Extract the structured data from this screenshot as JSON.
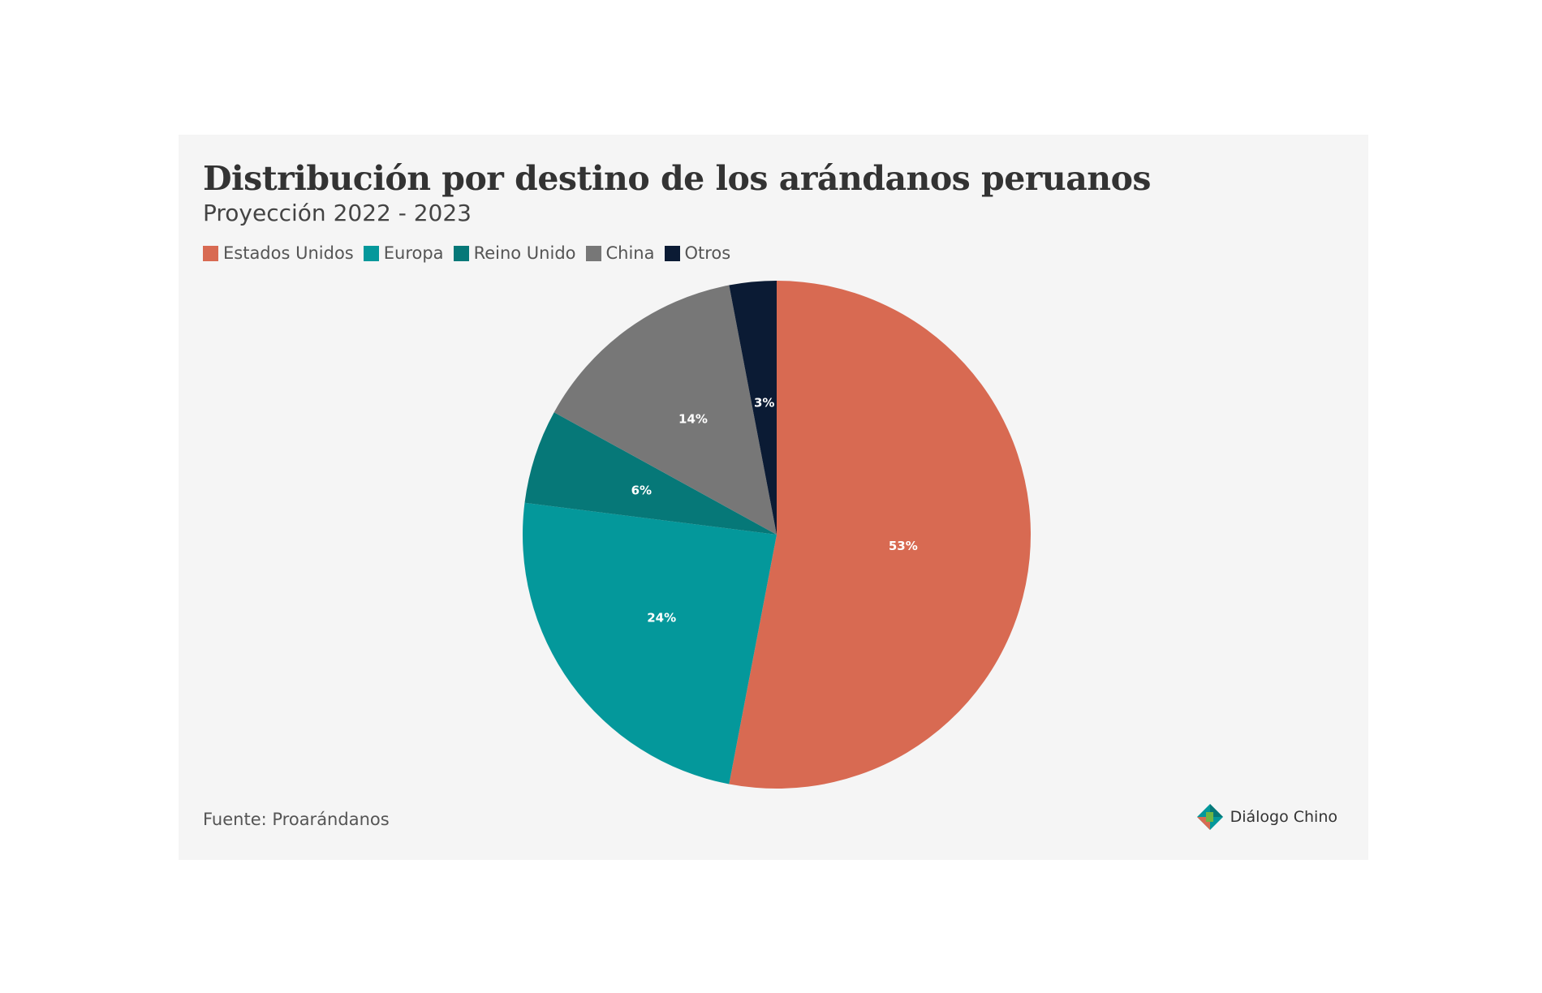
{
  "chart_data": {
    "type": "pie",
    "title": "Distribución por destino de los arándanos peruanos",
    "subtitle": "Proyección 2022 - 2023",
    "legend_position": "top-left",
    "slices": [
      {
        "name": "Estados Unidos",
        "value": 53,
        "label": "53%",
        "color": "#d86a52"
      },
      {
        "name": "Europa",
        "value": 24,
        "label": "24%",
        "color": "#04989b"
      },
      {
        "name": "Reino Unido",
        "value": 6,
        "label": "6%",
        "color": "#067878"
      },
      {
        "name": "China",
        "value": 14,
        "label": "14%",
        "color": "#777777"
      },
      {
        "name": "Otros",
        "value": 3,
        "label": "3%",
        "color": "#0b1b34"
      }
    ]
  },
  "source": "Fuente: Proarándanos",
  "logo": {
    "text": "Diálogo Chino",
    "icon": "dialogo-chino-diamond-icon"
  }
}
